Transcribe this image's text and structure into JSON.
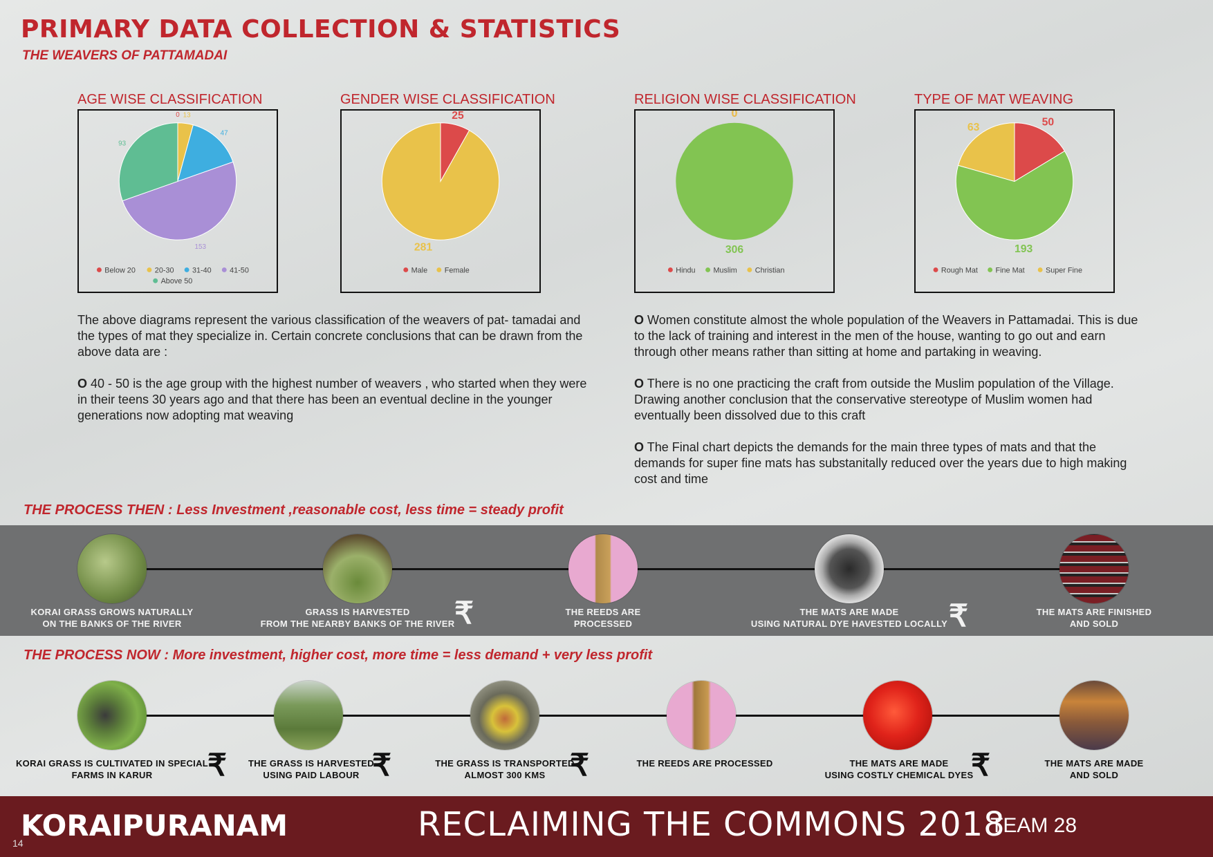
{
  "header": {
    "title": "PRIMARY DATA COLLECTION & STATISTICS",
    "subtitle": "THE WEAVERS OF PATTAMADAI"
  },
  "charts": {
    "age": {
      "label": "AGE WISE CLASSIFICATION"
    },
    "gender": {
      "label": "GENDER WISE CLASSIFICATION"
    },
    "religion": {
      "label": "RELIGION WISE CLASSIFICATION"
    },
    "mat": {
      "label": "TYPE OF MAT WEAVING"
    }
  },
  "chart_data": [
    {
      "id": "age",
      "type": "pie",
      "categories": [
        "Below 20",
        "20-30",
        "31-40",
        "41-50",
        "Above 50"
      ],
      "values": [
        0,
        13,
        47,
        153,
        93
      ],
      "value_labels": [
        "0",
        "13",
        "47",
        "153",
        "93"
      ],
      "colors": [
        "#dc4a4a",
        "#e9c24a",
        "#3eaee0",
        "#a98fd6",
        "#5fbd93"
      ],
      "legend_rows": [
        [
          "Below 20",
          "20-30",
          "31-40",
          "41-50"
        ],
        [
          "Above 50"
        ]
      ],
      "legend_position": "bottom"
    },
    {
      "id": "gender",
      "type": "pie",
      "categories": [
        "Male",
        "Female"
      ],
      "values": [
        25,
        281
      ],
      "value_labels": [
        "25",
        "281"
      ],
      "colors": [
        "#dc4a4a",
        "#e9c24a"
      ],
      "legend_rows": [
        [
          "Male",
          "Female"
        ]
      ],
      "legend_position": "bottom"
    },
    {
      "id": "religion",
      "type": "pie",
      "categories": [
        "Hindu",
        "Muslim",
        "Christian"
      ],
      "values": [
        0,
        306,
        0
      ],
      "value_labels": [
        "0",
        "306",
        "0"
      ],
      "colors": [
        "#dc4a4a",
        "#82c452",
        "#e9c24a"
      ],
      "legend_rows": [
        [
          "Hindu",
          "Muslim",
          "Christian"
        ]
      ],
      "legend_position": "bottom"
    },
    {
      "id": "mat",
      "type": "pie",
      "categories": [
        "Rough Mat",
        "Fine Mat",
        "Super Fine"
      ],
      "values": [
        50,
        193,
        63
      ],
      "value_labels": [
        "50",
        "193",
        "63"
      ],
      "colors": [
        "#dc4a4a",
        "#82c452",
        "#e9c24a"
      ],
      "legend_rows": [
        [
          "Rough Mat",
          "Fine Mat",
          "Super Fine"
        ]
      ],
      "legend_position": "bottom"
    }
  ],
  "left_text": {
    "p1": "The above diagrams represent the various classification of the weavers of pat- tamadai and the types of mat they specialize in. Certain concrete conclusions that can be drawn from the above data are :",
    "p2_bullet": "O",
    "p2": "40 - 50 is the age group with the highest number of weavers , who started when they were in their teens 30 years ago and that there has been an eventual decline in the younger generations now adopting mat weaving"
  },
  "right_text": {
    "bullet": "O",
    "p1": "Women constitute almost the whole population of the Weavers in Pattamadai. This is due to the lack of training and interest  in the men of the house, wanting to go out and earn through other means rather than sitting at home and partaking in weaving.",
    "p2": "There is no one practicing the craft from outside the Muslim population of the Village. Drawing another conclusion that the conservative stereotype of Muslim women had eventually been dissolved due to this craft",
    "p3": "The Final chart depicts the demands for the main three types of mats and that the demands for super fine mats has substanitally reduced over the years due to high making cost and time"
  },
  "process_then": {
    "heading": "THE PROCESS THEN : Less Investment ,reasonable cost, less time = steady profit",
    "rupee": "₹",
    "steps": [
      {
        "line1": "KORAI GRASS GROWS NATURALLY",
        "line2": "ON THE BANKS OF THE RIVER"
      },
      {
        "line1": "GRASS IS HARVESTED",
        "line2": "FROM THE NEARBY BANKS OF THE RIVER"
      },
      {
        "line1": "THE REEDS ARE",
        "line2": "PROCESSED"
      },
      {
        "line1": "THE MATS ARE MADE",
        "line2": "USING NATURAL DYE HAVESTED LOCALLY"
      },
      {
        "line1": "THE MATS ARE FINISHED",
        "line2": "AND SOLD"
      }
    ]
  },
  "process_now": {
    "heading": "THE PROCESS NOW : More investment, higher cost, more time = less demand + very less profit",
    "rupee": "₹",
    "steps": [
      {
        "line1": "KORAI GRASS IS CULTIVATED IN SPECIAL",
        "line2": "FARMS IN KARUR"
      },
      {
        "line1": "THE GRASS IS HARVESTED",
        "line2": "USING PAID LABOUR"
      },
      {
        "line1": "THE GRASS IS TRANSPORTED",
        "line2": "ALMOST 300 KMS"
      },
      {
        "line1": "THE REEDS ARE PROCESSED",
        "line2": ""
      },
      {
        "line1": "THE MATS ARE MADE",
        "line2": "USING COSTLY CHEMICAL DYES"
      },
      {
        "line1": "THE MATS ARE MADE",
        "line2": "AND SOLD"
      }
    ]
  },
  "footer": {
    "brand": "KORAIPURANAM",
    "title": "RECLAIMING THE COMMONS 2018",
    "team": "TEAM 28",
    "page": "14"
  }
}
